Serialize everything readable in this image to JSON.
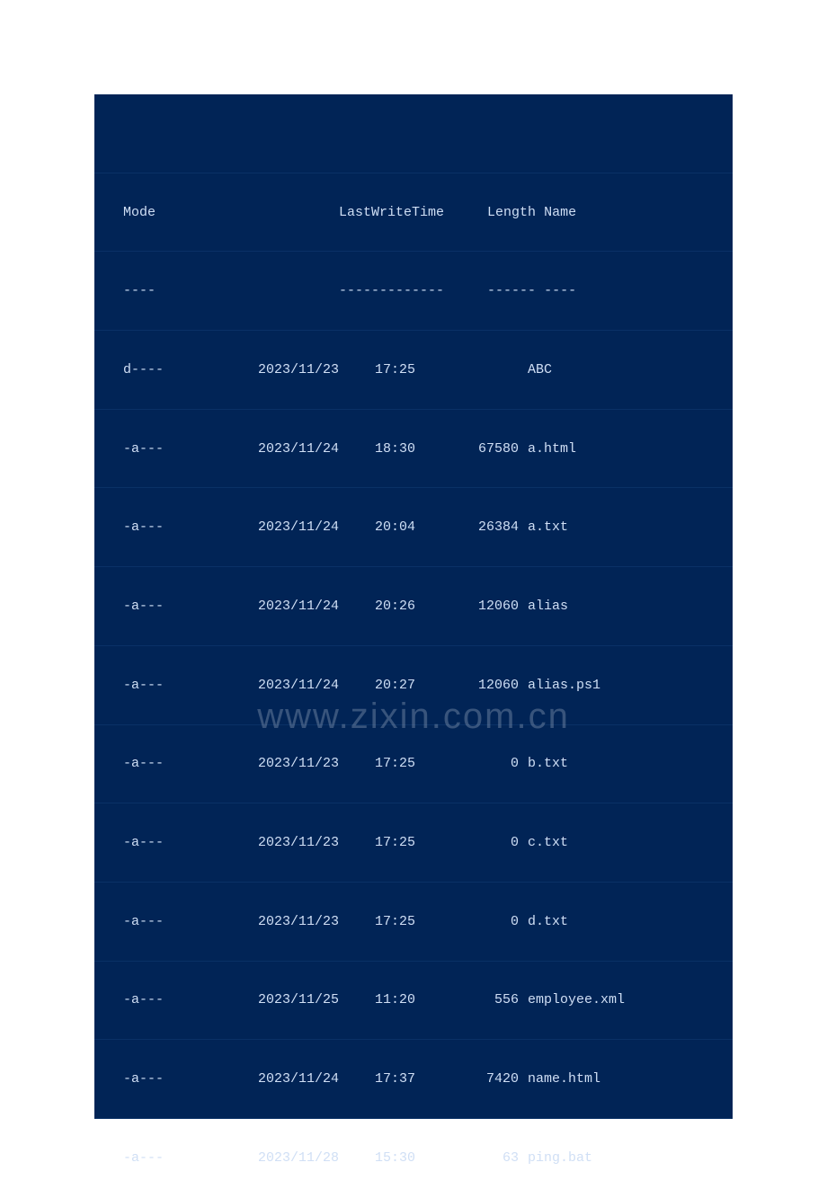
{
  "terminal": {
    "background_color": "#012456",
    "text_color": "#d0dff5",
    "row_border_color": "#0a3166",
    "font_family": "Consolas",
    "font_size": 15,
    "page_background": "#ffffff"
  },
  "header": {
    "mode_label": "Mode",
    "lastwritetime_label": "LastWriteTime",
    "length_label": "Length",
    "name_label": "Name"
  },
  "separator": {
    "mode": "----",
    "lastwritetime": "-------------",
    "length": "------",
    "name": "----"
  },
  "rows": [
    {
      "mode": "d----",
      "date": "2023/11/23",
      "time": "17:25",
      "length": "",
      "name": "ABC"
    },
    {
      "mode": "-a---",
      "date": "2023/11/24",
      "time": "18:30",
      "length": "67580",
      "name": "a.html"
    },
    {
      "mode": "-a---",
      "date": "2023/11/24",
      "time": "20:04",
      "length": "26384",
      "name": "a.txt"
    },
    {
      "mode": "-a---",
      "date": "2023/11/24",
      "time": "20:26",
      "length": "12060",
      "name": "alias"
    },
    {
      "mode": "-a---",
      "date": "2023/11/24",
      "time": "20:27",
      "length": "12060",
      "name": "alias.ps1"
    },
    {
      "mode": "-a---",
      "date": "2023/11/23",
      "time": "17:25",
      "length": "0",
      "name": "b.txt"
    },
    {
      "mode": "-a---",
      "date": "2023/11/23",
      "time": "17:25",
      "length": "0",
      "name": "c.txt"
    },
    {
      "mode": "-a---",
      "date": "2023/11/23",
      "time": "17:25",
      "length": "0",
      "name": "d.txt"
    },
    {
      "mode": "-a---",
      "date": "2023/11/25",
      "time": "11:20",
      "length": "556",
      "name": "employee.xml"
    },
    {
      "mode": "-a---",
      "date": "2023/11/24",
      "time": "17:37",
      "length": "7420",
      "name": "name.html"
    },
    {
      "mode": "-a---",
      "date": "2023/11/28",
      "time": "15:30",
      "length": "63",
      "name": "ping.bat"
    }
  ],
  "watermark": {
    "text": "www.zixin.com.cn",
    "color": "rgba(160, 175, 195, 0.35)",
    "font_size": 40
  }
}
